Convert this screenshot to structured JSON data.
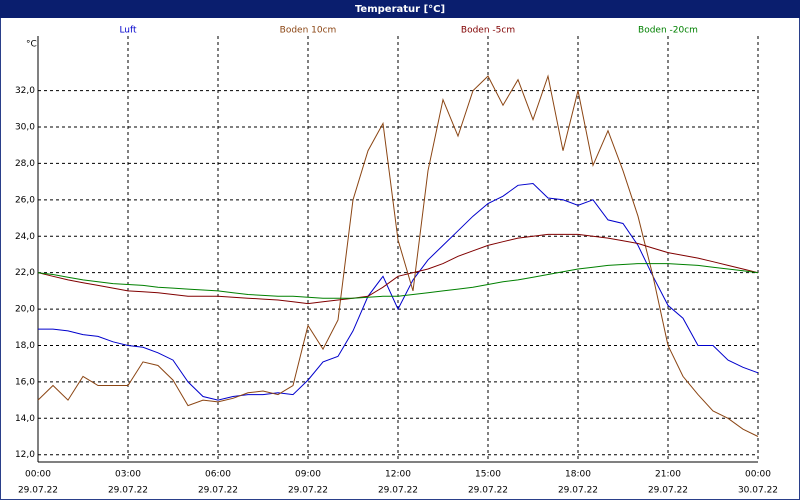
{
  "chart_data": {
    "type": "line",
    "title": "Temperatur [°C]",
    "y_unit": "°C",
    "x": [
      0,
      0.5,
      1,
      1.5,
      2,
      2.5,
      3,
      3.5,
      4,
      4.5,
      5,
      5.5,
      6,
      6.5,
      7,
      7.5,
      8,
      8.5,
      9,
      9.5,
      10,
      10.5,
      11,
      11.5,
      12,
      12.5,
      13,
      13.5,
      14,
      14.5,
      15,
      15.5,
      16,
      16.5,
      17,
      17.5,
      18,
      18.5,
      19,
      19.5,
      20,
      20.5,
      21,
      21.5,
      22,
      22.5,
      23,
      23.5,
      24
    ],
    "xlim": [
      0,
      24
    ],
    "xticks": [
      {
        "value": 0,
        "label": "00:00",
        "date": "29.07.22"
      },
      {
        "value": 3,
        "label": "03:00",
        "date": "29.07.22"
      },
      {
        "value": 6,
        "label": "06:00",
        "date": "29.07.22"
      },
      {
        "value": 9,
        "label": "09:00",
        "date": "29.07.22"
      },
      {
        "value": 12,
        "label": "12:00",
        "date": "29.07.22"
      },
      {
        "value": 15,
        "label": "15:00",
        "date": "29.07.22"
      },
      {
        "value": 18,
        "label": "18:00",
        "date": "29.07.22"
      },
      {
        "value": 21,
        "label": "21:00",
        "date": "29.07.22"
      },
      {
        "value": 24,
        "label": "00:00",
        "date": "30.07.22"
      }
    ],
    "ylim": [
      11.6,
      35.0
    ],
    "yticks": [
      {
        "value": 12,
        "label": "12,0"
      },
      {
        "value": 14,
        "label": "14,0"
      },
      {
        "value": 16,
        "label": "16,0"
      },
      {
        "value": 18,
        "label": "18,0"
      },
      {
        "value": 20,
        "label": "20,0"
      },
      {
        "value": 22,
        "label": "22,0"
      },
      {
        "value": 24,
        "label": "24,0"
      },
      {
        "value": 26,
        "label": "26,0"
      },
      {
        "value": 28,
        "label": "28,0"
      },
      {
        "value": 30,
        "label": "30,0"
      },
      {
        "value": 32,
        "label": "32,0"
      }
    ],
    "grid": true,
    "legend": "top",
    "series": [
      {
        "name": "Luft",
        "color": "#0000cc",
        "values": [
          18.9,
          18.9,
          18.8,
          18.6,
          18.5,
          18.2,
          18.0,
          17.9,
          17.6,
          17.2,
          16.0,
          15.2,
          15.0,
          15.2,
          15.3,
          15.3,
          15.4,
          15.3,
          16.1,
          17.1,
          17.4,
          18.8,
          20.7,
          21.8,
          20.0,
          21.6,
          22.7,
          23.5,
          24.3,
          25.1,
          25.8,
          26.2,
          26.8,
          26.9,
          26.1,
          26.0,
          25.7,
          26.0,
          24.9,
          24.7,
          23.5,
          21.8,
          20.2,
          19.5,
          18.0,
          18.0,
          17.2,
          16.8,
          16.5
        ]
      },
      {
        "name": "Boden 10cm",
        "color": "#8b4513",
        "values": [
          15.0,
          15.8,
          15.0,
          16.3,
          15.8,
          15.8,
          15.8,
          17.1,
          16.9,
          16.1,
          14.7,
          15.0,
          14.9,
          15.1,
          15.4,
          15.5,
          15.3,
          15.8,
          19.1,
          17.8,
          19.4,
          26.0,
          28.7,
          30.2,
          23.8,
          21.0,
          27.6,
          31.5,
          29.5,
          32.0,
          32.8,
          31.2,
          32.6,
          30.4,
          32.8,
          28.7,
          32.0,
          27.9,
          29.8,
          27.6,
          25.1,
          21.8,
          18.0,
          16.3,
          15.3,
          14.4,
          14.0,
          13.4,
          13.0
        ]
      },
      {
        "name": "Boden -5cm",
        "color": "#800000",
        "values": [
          22.0,
          21.8,
          21.6,
          21.45,
          21.3,
          21.15,
          21.0,
          20.95,
          20.9,
          20.8,
          20.7,
          20.7,
          20.7,
          20.65,
          20.6,
          20.55,
          20.5,
          20.4,
          20.3,
          20.4,
          20.5,
          20.6,
          20.7,
          21.2,
          21.8,
          22.0,
          22.2,
          22.5,
          22.9,
          23.2,
          23.5,
          23.7,
          23.9,
          24.0,
          24.1,
          24.1,
          24.1,
          24.0,
          23.9,
          23.75,
          23.6,
          23.35,
          23.1,
          22.95,
          22.8,
          22.6,
          22.4,
          22.2,
          22.0
        ]
      },
      {
        "name": "Boden -20cm",
        "color": "#008000",
        "values": [
          22.0,
          21.9,
          21.75,
          21.6,
          21.5,
          21.4,
          21.35,
          21.3,
          21.2,
          21.15,
          21.1,
          21.05,
          21.0,
          20.9,
          20.8,
          20.75,
          20.7,
          20.7,
          20.65,
          20.6,
          20.6,
          20.6,
          20.65,
          20.7,
          20.7,
          20.8,
          20.9,
          21.0,
          21.1,
          21.2,
          21.35,
          21.5,
          21.6,
          21.75,
          21.9,
          22.05,
          22.2,
          22.3,
          22.4,
          22.45,
          22.5,
          22.5,
          22.5,
          22.45,
          22.4,
          22.3,
          22.2,
          22.1,
          22.0
        ]
      }
    ]
  }
}
